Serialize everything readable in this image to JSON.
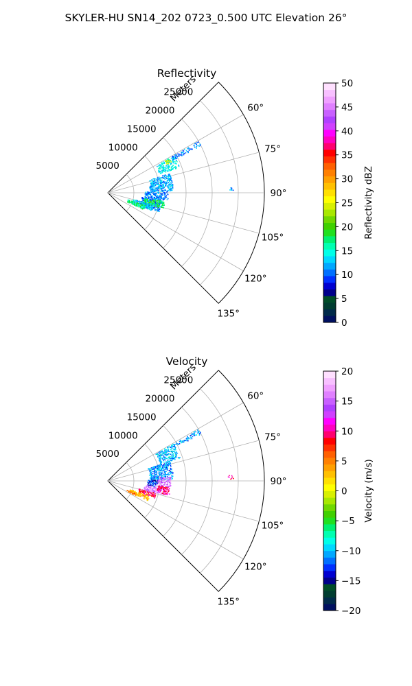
{
  "figure_title": "SKYLER-HU  SN14_202  0723_0.500 UTC Elevation 26°",
  "chart_data": [
    {
      "type": "polar-sector",
      "title": "Reflectivity",
      "range_label": "Meters",
      "radial_ticks": [
        5000,
        10000,
        15000,
        20000,
        25000
      ],
      "radial_tick_labels": [
        "5000",
        "10000",
        "15000",
        "20000",
        "25000"
      ],
      "r_max": 30000,
      "azimuth_ticks": [
        60,
        75,
        90,
        105,
        120,
        135
      ],
      "azimuth_tick_labels": [
        "60°",
        "75°",
        "90°",
        "105°",
        "120°",
        "135°"
      ],
      "azimuth_range": [
        45,
        135
      ],
      "grid": true,
      "colorbar": {
        "label": "Reflectivity dBZ",
        "min": 0,
        "max": 50,
        "ticks": [
          0,
          5,
          10,
          15,
          20,
          25,
          30,
          35,
          40,
          45,
          50
        ],
        "tick_labels": [
          "0",
          "5",
          "10",
          "15",
          "20",
          "25",
          "30",
          "35",
          "40",
          "45",
          "50"
        ],
        "colors": [
          "#001060",
          "#002a4a",
          "#003d30",
          "#004d28",
          "#00008b",
          "#0000d0",
          "#0030ff",
          "#0070ff",
          "#00a8ff",
          "#00d8ff",
          "#00ffe8",
          "#00ffb0",
          "#00f070",
          "#20e020",
          "#40d000",
          "#70d800",
          "#a8e800",
          "#d8f000",
          "#ffff00",
          "#ffe000",
          "#ffc000",
          "#ffa000",
          "#ff8000",
          "#ff6000",
          "#ff3000",
          "#ff0000",
          "#ff0070",
          "#ff00c0",
          "#ff00ff",
          "#d040ff",
          "#b040ff",
          "#c860ff",
          "#e080ff",
          "#f0a0ff",
          "#f8c0ff",
          "#ffe0ff"
        ]
      },
      "echo_regions": [
        {
          "az": [
            88,
            97
          ],
          "r": [
            7000,
            11500
          ],
          "value": 11
        },
        {
          "az": [
            97,
            110
          ],
          "r": [
            6500,
            10500
          ],
          "value": 11
        },
        {
          "az": [
            98,
            106
          ],
          "r": [
            7000,
            11000
          ],
          "value": 18
        },
        {
          "az": [
            104,
            112
          ],
          "r": [
            5000,
            9000
          ],
          "value": 13
        },
        {
          "az": [
            108,
            115
          ],
          "r": [
            4000,
            7500
          ],
          "value": 17
        },
        {
          "az": [
            72,
            88
          ],
          "r": [
            8000,
            12500
          ],
          "value": 12
        },
        {
          "az": [
            60,
            70
          ],
          "r": [
            10500,
            14500
          ],
          "value": 14
        },
        {
          "az": [
            60,
            64
          ],
          "r": [
            12500,
            13500
          ],
          "value": 24
        },
        {
          "az": [
            60,
            63
          ],
          "r": [
            14000,
            20000
          ],
          "value": 11
        },
        {
          "az": [
            87,
            89
          ],
          "r": [
            23000,
            24000
          ],
          "value": 11
        }
      ]
    },
    {
      "type": "polar-sector",
      "title": "Velocity",
      "range_label": "Meters",
      "radial_ticks": [
        5000,
        10000,
        15000,
        20000,
        25000
      ],
      "radial_tick_labels": [
        "5000",
        "10000",
        "15000",
        "20000",
        "25000"
      ],
      "r_max": 30000,
      "azimuth_ticks": [
        60,
        75,
        90,
        105,
        120,
        135
      ],
      "azimuth_tick_labels": [
        "60°",
        "75°",
        "90°",
        "105°",
        "120°",
        "135°"
      ],
      "azimuth_range": [
        45,
        135
      ],
      "grid": true,
      "colorbar": {
        "label": "Velocity (m/s)",
        "min": -20,
        "max": 20,
        "ticks": [
          -20,
          -15,
          -10,
          -5,
          0,
          5,
          10,
          15,
          20
        ],
        "tick_labels": [
          "−20",
          "−15",
          "−10",
          "−5",
          "0",
          "5",
          "10",
          "15",
          "20"
        ],
        "colors": [
          "#001060",
          "#002a4a",
          "#003d30",
          "#004d28",
          "#00008b",
          "#0000d0",
          "#0030ff",
          "#0070ff",
          "#00a8ff",
          "#00d8ff",
          "#00ffe8",
          "#00ffb0",
          "#00f070",
          "#20e020",
          "#40d000",
          "#70d800",
          "#a8e800",
          "#d8f000",
          "#ffff00",
          "#ffe000",
          "#ffc000",
          "#ffa000",
          "#ff8000",
          "#ff6000",
          "#ff3000",
          "#ff0000",
          "#ff0070",
          "#ff00c0",
          "#ff00ff",
          "#d040ff",
          "#b040ff",
          "#c860ff",
          "#e080ff",
          "#f0a0ff",
          "#f8c0ff",
          "#ffe0ff"
        ]
      },
      "echo_regions": [
        {
          "az": [
            60,
            72
          ],
          "r": [
            10500,
            14500
          ],
          "value": -10
        },
        {
          "az": [
            72,
            88
          ],
          "r": [
            8000,
            12500
          ],
          "value": -11
        },
        {
          "az": [
            88,
            96
          ],
          "r": [
            7500,
            9500
          ],
          "value": -13
        },
        {
          "az": [
            86,
            96
          ],
          "r": [
            9500,
            12000
          ],
          "value": 15
        },
        {
          "az": [
            96,
            104
          ],
          "r": [
            7000,
            11000
          ],
          "value": 16
        },
        {
          "az": [
            95,
            103
          ],
          "r": [
            9500,
            12000
          ],
          "value": 10
        },
        {
          "az": [
            104,
            110
          ],
          "r": [
            6000,
            9500
          ],
          "value": 9
        },
        {
          "az": [
            110,
            116
          ],
          "r": [
            4500,
            8500
          ],
          "value": 3
        },
        {
          "az": [
            114,
            118
          ],
          "r": [
            4000,
            6000
          ],
          "value": 5
        },
        {
          "az": [
            60,
            63
          ],
          "r": [
            14000,
            20000
          ],
          "value": -11
        },
        {
          "az": [
            87,
            89
          ],
          "r": [
            23000,
            24000
          ],
          "value": 9
        }
      ]
    }
  ]
}
